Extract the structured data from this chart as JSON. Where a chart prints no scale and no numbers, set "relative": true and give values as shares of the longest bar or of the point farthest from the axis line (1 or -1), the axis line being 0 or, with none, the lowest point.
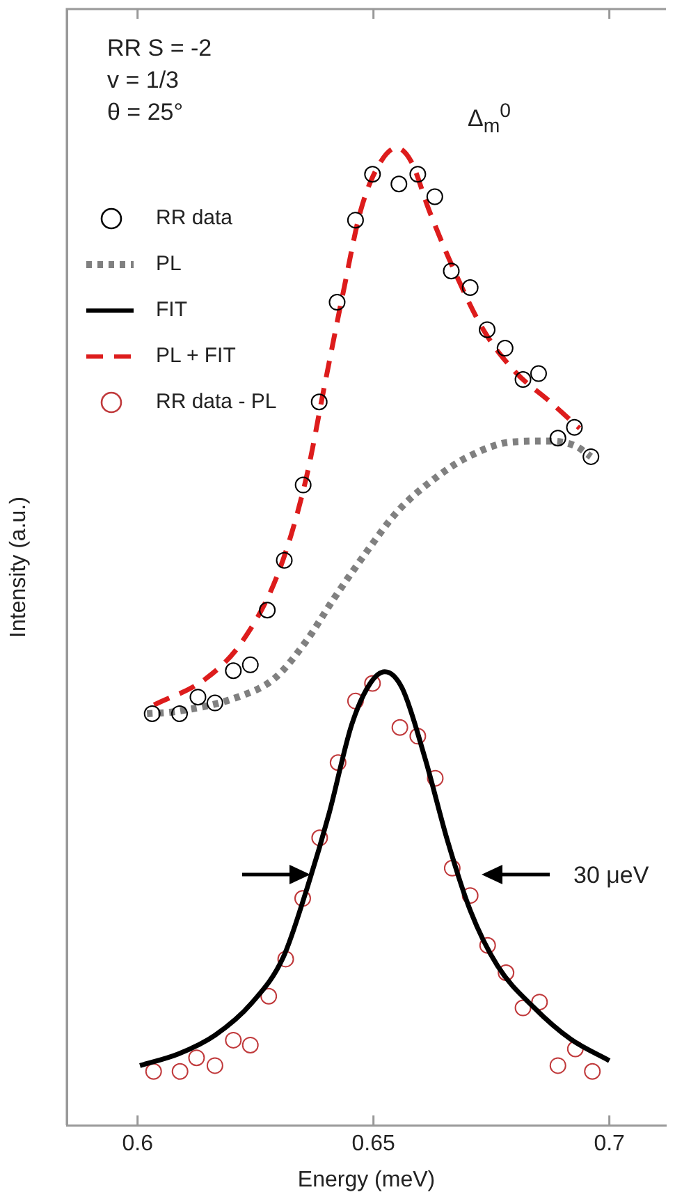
{
  "chart_data": {
    "type": "line",
    "xlabel": "Energy (meV)",
    "ylabel": "Intensity (a.u.)",
    "relative": true,
    "xlim": [
      0.585,
      0.712
    ],
    "xticks": [
      0.6,
      0.65,
      0.7
    ],
    "tick_labels": "x",
    "grid": false,
    "legend": "top left",
    "annotations": [
      "RR S = -2",
      "v = 1/3",
      "θ = 25°",
      "Δ$_{m}$$^{0}$",
      "30 μeV"
    ],
    "series": [
      {
        "name": "RR data",
        "type": "scatter",
        "marker": "circle",
        "color": "#000000",
        "x": [
          0.6031,
          0.6089,
          0.6128,
          0.6164,
          0.6203,
          0.6239,
          0.6275,
          0.6311,
          0.6351,
          0.6385,
          0.6423,
          0.6462,
          0.6498,
          0.6554,
          0.6594,
          0.663,
          0.6665,
          0.6705,
          0.6741,
          0.6779,
          0.6817,
          0.685,
          0.6891,
          0.6926,
          0.6961
        ],
        "values": [
          0.421,
          0.421,
          0.438,
          0.432,
          0.465,
          0.471,
          0.527,
          0.578,
          0.655,
          0.74,
          0.842,
          0.926,
          0.973,
          0.963,
          0.973,
          0.95,
          0.874,
          0.857,
          0.814,
          0.795,
          0.763,
          0.769,
          0.703,
          0.714,
          0.684
        ]
      },
      {
        "name": "PL",
        "type": "line",
        "marker": "none",
        "line_style": "dotted",
        "color": "#808080",
        "x": [
          0.602,
          0.6077,
          0.6212,
          0.629,
          0.6357,
          0.6415,
          0.6483,
          0.6551,
          0.6628,
          0.6705,
          0.6792,
          0.687,
          0.6928,
          0.6961
        ],
        "values": [
          0.421,
          0.423,
          0.438,
          0.457,
          0.495,
          0.538,
          0.585,
          0.628,
          0.661,
          0.685,
          0.699,
          0.7,
          0.695,
          0.684
        ]
      },
      {
        "name": "FIT",
        "type": "line",
        "marker": "none",
        "line_style": "solid",
        "color": "#000000",
        "x": [
          0.6005,
          0.6087,
          0.6164,
          0.6242,
          0.6309,
          0.6357,
          0.6406,
          0.6454,
          0.6493,
          0.6524,
          0.6561,
          0.6609,
          0.6657,
          0.6705,
          0.6763,
          0.6841,
          0.6918,
          0.7
        ],
        "values": [
          0.061,
          0.073,
          0.092,
          0.125,
          0.172,
          0.239,
          0.319,
          0.41,
          0.452,
          0.464,
          0.447,
          0.376,
          0.291,
          0.22,
          0.163,
          0.12,
          0.088,
          0.066
        ]
      },
      {
        "name": "PL + FIT",
        "type": "line",
        "marker": "none",
        "line_style": "dashed",
        "color": "#dd1c1c",
        "x": [
          0.6035,
          0.6145,
          0.6222,
          0.6299,
          0.6357,
          0.6396,
          0.6435,
          0.6473,
          0.6512,
          0.6549,
          0.658,
          0.6618,
          0.6667,
          0.6734,
          0.6802,
          0.687,
          0.6937
        ],
        "values": [
          0.43,
          0.457,
          0.495,
          0.566,
          0.661,
          0.756,
          0.85,
          0.936,
          0.983,
          1.0,
          0.986,
          0.936,
          0.879,
          0.813,
          0.77,
          0.742,
          0.713
        ]
      },
      {
        "name": "RR data - PL",
        "type": "scatter",
        "marker": "circle",
        "color": "#c0393b",
        "x": [
          0.6034,
          0.609,
          0.6125,
          0.6164,
          0.6203,
          0.6239,
          0.6278,
          0.6314,
          0.635,
          0.6386,
          0.6425,
          0.6462,
          0.6498,
          0.6556,
          0.6594,
          0.6631,
          0.6667,
          0.6705,
          0.6742,
          0.6781,
          0.6817,
          0.6852,
          0.6891,
          0.6928,
          0.6964
        ],
        "values": [
          0.055,
          0.055,
          0.069,
          0.061,
          0.087,
          0.082,
          0.132,
          0.17,
          0.232,
          0.294,
          0.371,
          0.434,
          0.452,
          0.407,
          0.398,
          0.355,
          0.263,
          0.235,
          0.184,
          0.156,
          0.12,
          0.126,
          0.061,
          0.078,
          0.055
        ]
      }
    ]
  }
}
